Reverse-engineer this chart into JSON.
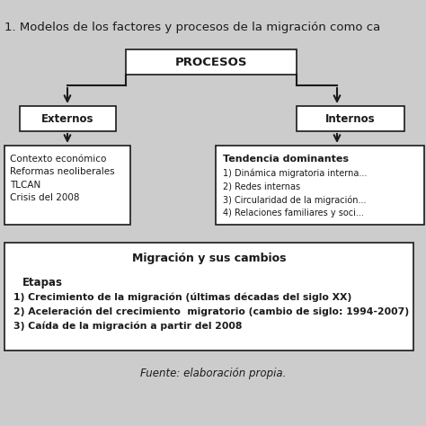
{
  "bg_color": "#cccccc",
  "title": "1. Modelos de los factores y procesos de la migración como ca",
  "title_fontsize": 9.5,
  "procesos_label": "PROCESOS",
  "externos_label": "Externos",
  "internos_label": "Internos",
  "externos_content": "Contexto económico\nReformas neoliberales\nTLCAN\nCrisis del 2008",
  "internos_title": "Tendencia dominantes",
  "internos_content": "1) Dinámica migratoria interna...\n2) Redes internas\n3) Circularidad de la migración...\n4) Relaciones familiares y soci...",
  "bottom_title": "Migración y sus cambios",
  "bottom_subtitle": "Etapas",
  "bottom_content": "1) Crecimiento de la migración (últimas décadas del siglo XX)\n2) Aceleración del crecimiento  migratorio (cambio de siglo: 1994-2007)\n3) Caída de la migración a partir del 2008",
  "fuente": "Fuente: elaboración propia.",
  "box_color": "#ffffff",
  "line_color": "#1a1a1a",
  "text_color": "#1a1a1a"
}
